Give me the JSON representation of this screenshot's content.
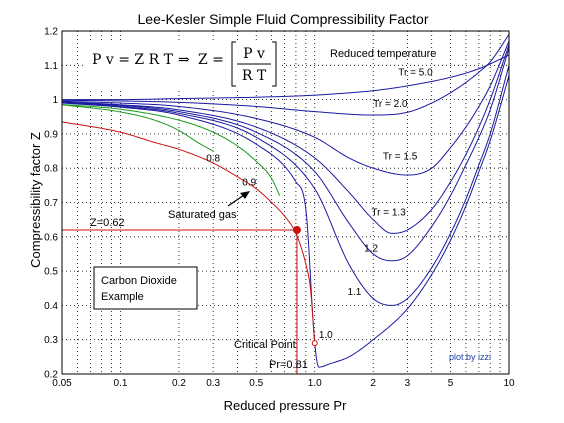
{
  "chart_data": {
    "type": "line",
    "title": "Lee-Kesler Simple Fluid Compressibility Factor",
    "xlabel": "Reduced pressure Pr",
    "ylabel": "Compressibility factor Z",
    "xscale": "log",
    "xlim": [
      0.05,
      10
    ],
    "ylim": [
      0.2,
      1.2
    ],
    "grid": true,
    "xticks": [
      {
        "v": 0.05,
        "label": "0.05"
      },
      {
        "v": 0.1,
        "label": "0.1"
      },
      {
        "v": 0.2,
        "label": "0.2"
      },
      {
        "v": 0.3,
        "label": "0.3"
      },
      {
        "v": 0.5,
        "label": "0.5"
      },
      {
        "v": 1,
        "label": "1.0"
      },
      {
        "v": 2,
        "label": "2"
      },
      {
        "v": 3,
        "label": "3"
      },
      {
        "v": 5,
        "label": "5"
      },
      {
        "v": 10,
        "label": "10"
      }
    ],
    "xgrid": [
      0.05,
      0.06,
      0.07,
      0.08,
      0.09,
      0.1,
      0.2,
      0.3,
      0.4,
      0.5,
      0.6,
      0.7,
      0.8,
      0.9,
      1,
      2,
      3,
      4,
      5,
      6,
      7,
      8,
      9,
      10
    ],
    "yticks": [
      {
        "v": 0.2,
        "label": "0.2"
      },
      {
        "v": 0.3,
        "label": "0.3"
      },
      {
        "v": 0.4,
        "label": "0.4"
      },
      {
        "v": 0.5,
        "label": "0.5"
      },
      {
        "v": 0.6,
        "label": "0.6"
      },
      {
        "v": 0.7,
        "label": "0.7"
      },
      {
        "v": 0.8,
        "label": "0.8"
      },
      {
        "v": 0.9,
        "label": "0.9"
      },
      {
        "v": 1,
        "label": "1"
      },
      {
        "v": 1.1,
        "label": "1.1"
      },
      {
        "v": 1.2,
        "label": "1.2"
      }
    ],
    "series": [
      {
        "name": "Tr = 5.0",
        "color": "#1a1aa0",
        "x": [
          0.05,
          0.1,
          0.2,
          0.5,
          1,
          2,
          3,
          5,
          7,
          10
        ],
        "y": [
          1.0,
          1.0,
          1.003,
          1.007,
          1.013,
          1.026,
          1.04,
          1.065,
          1.09,
          1.13
        ]
      },
      {
        "name": "Tr = 2.0",
        "color": "#1a1aa0",
        "x": [
          0.05,
          0.1,
          0.2,
          0.5,
          1,
          2,
          3,
          4,
          5,
          6,
          7,
          8,
          10
        ],
        "y": [
          0.998,
          0.996,
          0.992,
          0.98,
          0.965,
          0.955,
          0.963,
          0.99,
          1.02,
          1.05,
          1.08,
          1.11,
          1.19
        ]
      },
      {
        "name": "Tr = 1.5",
        "color": "#1a1aa0",
        "x": [
          0.05,
          0.1,
          0.2,
          0.5,
          1,
          1.5,
          2,
          3,
          4,
          5,
          6,
          7,
          8,
          10
        ],
        "y": [
          0.995,
          0.99,
          0.98,
          0.945,
          0.89,
          0.83,
          0.8,
          0.78,
          0.8,
          0.86,
          0.92,
          0.98,
          1.04,
          1.17
        ]
      },
      {
        "name": "Tr = 1.3",
        "color": "#1a1aa0",
        "x": [
          0.05,
          0.1,
          0.2,
          0.5,
          1,
          1.5,
          2,
          2.5,
          3,
          4,
          5,
          6,
          7,
          8,
          10
        ],
        "y": [
          0.993,
          0.985,
          0.97,
          0.92,
          0.83,
          0.73,
          0.65,
          0.61,
          0.62,
          0.68,
          0.76,
          0.84,
          0.92,
          1.0,
          1.16
        ]
      },
      {
        "name": "1.2",
        "color": "#1a1aa0",
        "x": [
          0.05,
          0.1,
          0.2,
          0.5,
          1,
          1.5,
          2,
          2.5,
          3,
          4,
          5,
          6,
          7,
          8,
          10
        ],
        "y": [
          0.992,
          0.983,
          0.965,
          0.905,
          0.79,
          0.64,
          0.55,
          0.53,
          0.545,
          0.63,
          0.72,
          0.81,
          0.89,
          0.97,
          1.15
        ]
      },
      {
        "name": "1.1",
        "color": "#1a1aa0",
        "x": [
          0.05,
          0.1,
          0.2,
          0.5,
          1,
          1.5,
          2,
          2.5,
          3,
          4,
          5,
          6,
          7,
          8,
          10
        ],
        "y": [
          0.991,
          0.98,
          0.96,
          0.89,
          0.74,
          0.52,
          0.42,
          0.4,
          0.42,
          0.51,
          0.61,
          0.71,
          0.81,
          0.9,
          1.1
        ]
      },
      {
        "name": "1.0",
        "color": "#1a1aa0",
        "x": [
          0.05,
          0.1,
          0.2,
          0.5,
          0.8,
          0.9,
          1.0,
          1.05,
          1.2,
          1.5,
          2,
          3,
          4,
          5,
          6,
          7,
          8,
          10
        ],
        "y": [
          0.99,
          0.978,
          0.955,
          0.87,
          0.76,
          0.68,
          0.29,
          0.22,
          0.23,
          0.25,
          0.3,
          0.39,
          0.49,
          0.59,
          0.69,
          0.79,
          0.88,
          1.07
        ]
      },
      {
        "name": "0.9",
        "color": "#1a9a1a",
        "x": [
          0.05,
          0.1,
          0.2,
          0.3,
          0.4,
          0.5,
          0.6,
          0.66
        ],
        "y": [
          0.986,
          0.972,
          0.94,
          0.905,
          0.865,
          0.82,
          0.77,
          0.72
        ]
      },
      {
        "name": "0.8",
        "color": "#1a9a1a",
        "x": [
          0.05,
          0.1,
          0.15,
          0.2,
          0.25,
          0.3
        ],
        "y": [
          0.985,
          0.964,
          0.94,
          0.91,
          0.875,
          0.85
        ]
      },
      {
        "name": "Saturated gas",
        "color": "#cc1111",
        "x": [
          0.05,
          0.1,
          0.15,
          0.2,
          0.3,
          0.4,
          0.5,
          0.6,
          0.7,
          0.8,
          0.9,
          0.95,
          1.0
        ],
        "y": [
          0.935,
          0.905,
          0.875,
          0.855,
          0.815,
          0.775,
          0.74,
          0.7,
          0.66,
          0.61,
          0.52,
          0.45,
          0.29
        ]
      }
    ],
    "curve_labels": [
      {
        "text": "Tr = 5.0",
        "x": 3.3,
        "y": 1.08
      },
      {
        "text": "Tr = 2.0",
        "x": 2.45,
        "y": 0.988
      },
      {
        "text": "Tr = 1.5",
        "x": 2.75,
        "y": 0.835
      },
      {
        "text": "Tr = 1.3",
        "x": 2.4,
        "y": 0.673
      },
      {
        "text": "1.2",
        "x": 1.95,
        "y": 0.568
      },
      {
        "text": "1.1",
        "x": 1.6,
        "y": 0.44
      },
      {
        "text": "1.0",
        "x": 1.14,
        "y": 0.315
      },
      {
        "text": "0.9",
        "x": 0.46,
        "y": 0.76
      },
      {
        "text": "0.8",
        "x": 0.3,
        "y": 0.83
      }
    ],
    "highlight": {
      "pr": 0.81,
      "z": 0.62,
      "z_label": "Z=0.62",
      "pr_label": "Pr=0.81",
      "color": "#cc1111"
    },
    "critical_point": {
      "x": 1.0,
      "y": 0.29,
      "label": "Critical Point"
    },
    "annotations": {
      "reduced_temperature": "Reduced temperature",
      "saturated_gas": "Saturated gas",
      "example_box": [
        "Carbon Dioxide",
        "Example"
      ],
      "credit": "plot by izzi"
    },
    "formula": {
      "lhs": "P v = Z R T",
      "arrow": "⇒",
      "z_eq": "Z =",
      "numerator": "P v",
      "denominator": "R T"
    }
  }
}
